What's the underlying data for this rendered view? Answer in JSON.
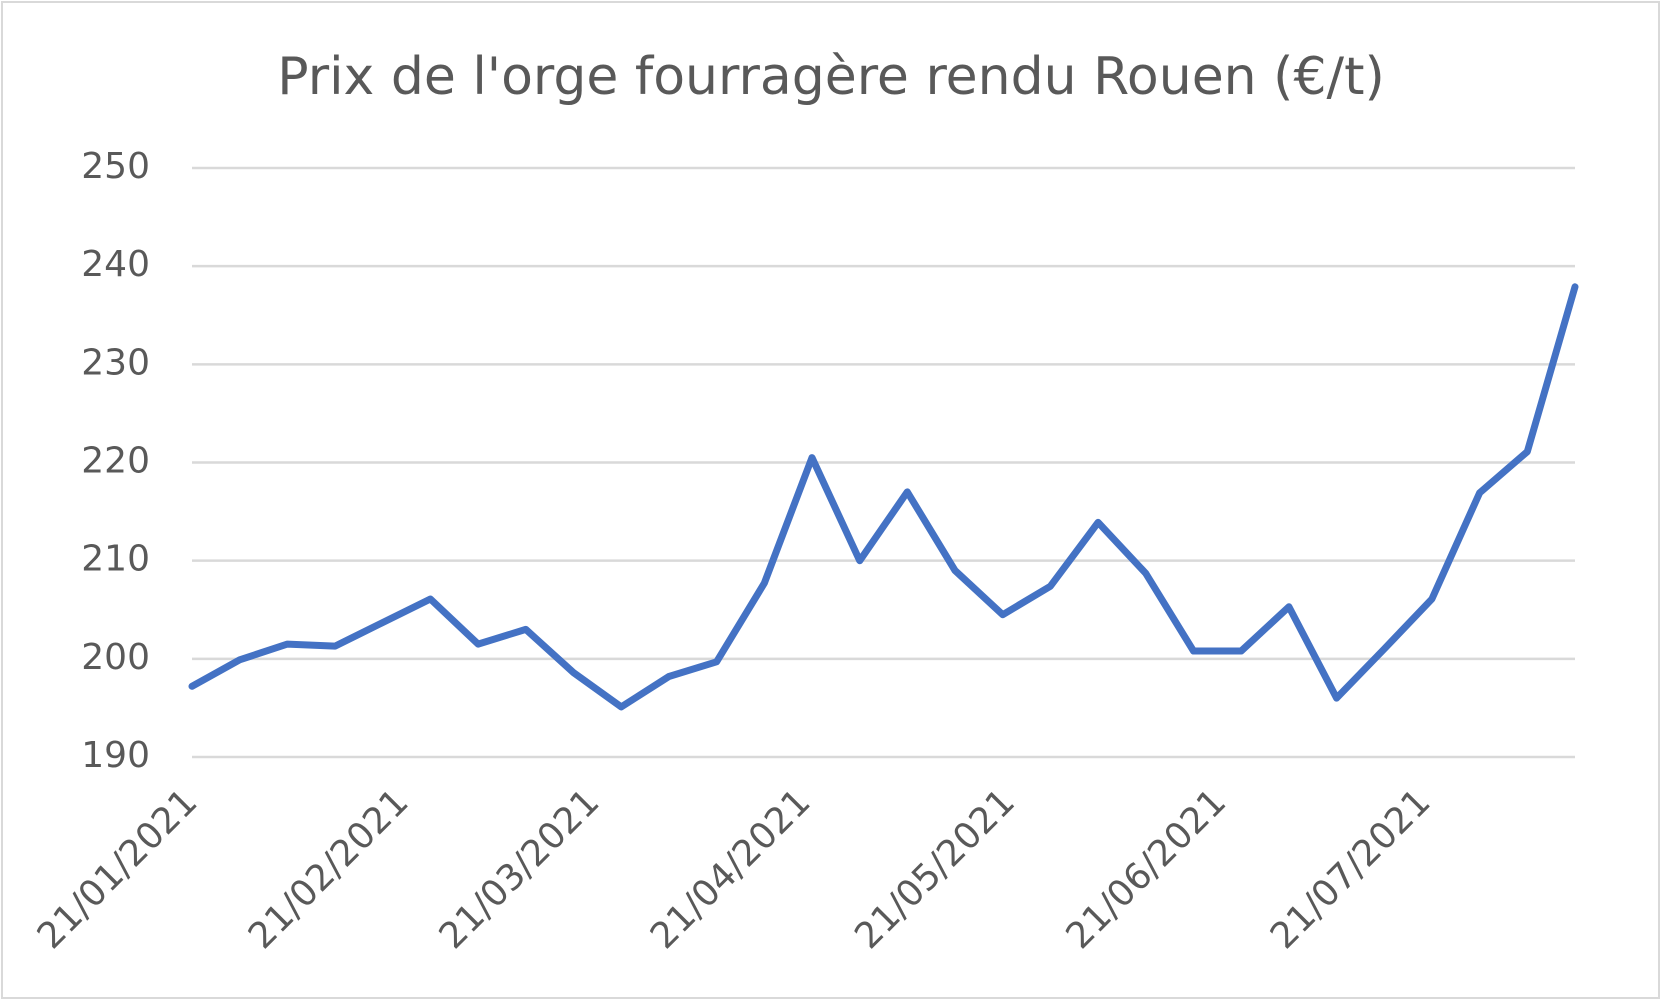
{
  "chart_data": {
    "type": "line",
    "title": "Prix de l'orge fourragère rendu Rouen (€/t)",
    "x": [
      "2021-01-21",
      "2021-01-28",
      "2021-02-04",
      "2021-02-11",
      "2021-02-18",
      "2021-02-25",
      "2021-03-04",
      "2021-03-11",
      "2021-03-18",
      "2021-03-25",
      "2021-04-01",
      "2021-04-08",
      "2021-04-15",
      "2021-04-22",
      "2021-04-29",
      "2021-05-06",
      "2021-05-13",
      "2021-05-20",
      "2021-05-27",
      "2021-06-03",
      "2021-06-10",
      "2021-06-17",
      "2021-06-24",
      "2021-07-01",
      "2021-07-08",
      "2021-07-15",
      "2021-07-22",
      "2021-07-29",
      "2021-08-05",
      "2021-08-12"
    ],
    "values": [
      197.2,
      199.9,
      201.5,
      201.3,
      203.7,
      206.1,
      201.5,
      203.0,
      198.6,
      195.1,
      198.2,
      199.7,
      207.7,
      220.5,
      210.0,
      217.0,
      209.0,
      204.5,
      207.4,
      213.9,
      208.7,
      200.8,
      200.8,
      205.3,
      196.0,
      201.0,
      206.1,
      216.9,
      221.1,
      237.9
    ],
    "color": "#4472c4",
    "xlim": [
      "2021-01-21",
      "2021-08-12"
    ],
    "xticks": [
      {
        "value": "2021-01-21",
        "label": "21/01/2021"
      },
      {
        "value": "2021-02-21",
        "label": "21/02/2021"
      },
      {
        "value": "2021-03-21",
        "label": "21/03/2021"
      },
      {
        "value": "2021-04-21",
        "label": "21/04/2021"
      },
      {
        "value": "2021-05-21",
        "label": "21/05/2021"
      },
      {
        "value": "2021-06-21",
        "label": "21/06/2021"
      },
      {
        "value": "2021-07-21",
        "label": "21/07/2021"
      }
    ],
    "ylim": [
      190,
      250
    ],
    "yticks": [
      190,
      200,
      210,
      220,
      230,
      240,
      250
    ],
    "grid": true
  }
}
